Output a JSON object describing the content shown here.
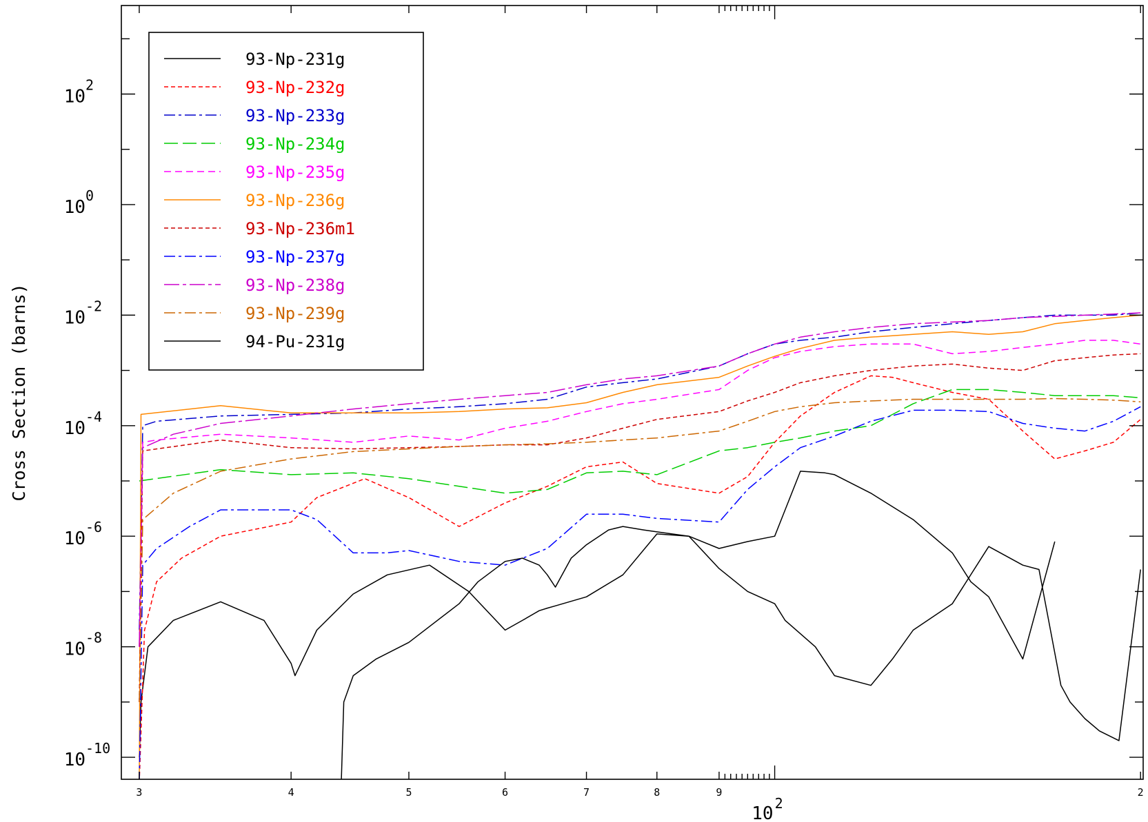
{
  "chart_data": {
    "type": "line",
    "title": "",
    "xlabel": "",
    "ylabel": "Cross Section (barns)",
    "x_scale": "log",
    "y_scale": "log",
    "xlim": [
      29,
      201
    ],
    "ylim": [
      4e-11,
      4000
    ],
    "grid": false,
    "legend_position": "top-left",
    "x_tick_labels": [
      {
        "value": 30,
        "label": "3"
      },
      {
        "value": 40,
        "label": "4"
      },
      {
        "value": 50,
        "label": "5"
      },
      {
        "value": 60,
        "label": "6"
      },
      {
        "value": 70,
        "label": "7"
      },
      {
        "value": 80,
        "label": "8"
      },
      {
        "value": 90,
        "label": "9"
      },
      {
        "value": 200,
        "label": "2"
      }
    ],
    "x_decade_labels": [
      {
        "value": 100,
        "base": "10",
        "exp": "2"
      }
    ],
    "y_decade_labels": [
      {
        "value": 1e-10,
        "base": "10",
        "exp": "-10"
      },
      {
        "value": 1e-08,
        "base": "10",
        "exp": "-8"
      },
      {
        "value": 1e-06,
        "base": "10",
        "exp": "-6"
      },
      {
        "value": 0.0001,
        "base": "10",
        "exp": "-4"
      },
      {
        "value": 0.01,
        "base": "10",
        "exp": "-2"
      },
      {
        "value": 1,
        "base": "10",
        "exp": "0"
      },
      {
        "value": 100,
        "base": "10",
        "exp": "2"
      }
    ],
    "series": [
      {
        "name": "93-Np-231g",
        "color": "#000000",
        "dash": "solid",
        "x": [
          30,
          30.1,
          30.5,
          32,
          35,
          38,
          40,
          40.3,
          42,
          45,
          48,
          52,
          56,
          60,
          62,
          64,
          65,
          66,
          70,
          75,
          80,
          85,
          90,
          95,
          100,
          102,
          108,
          112,
          120,
          125,
          130,
          140,
          150,
          160,
          165,
          172,
          175,
          180,
          185,
          192,
          200
        ],
        "y": [
          1e-10,
          1e-09,
          1e-08,
          3e-08,
          6.5e-08,
          3e-08,
          5e-09,
          3e-09,
          2e-08,
          9e-08,
          2e-07,
          3e-07,
          1e-07,
          2e-08,
          3e-08,
          4.5e-08,
          5e-08,
          5.5e-08,
          8e-08,
          2e-07,
          1.1e-06,
          1e-06,
          2.6e-07,
          1e-07,
          6e-08,
          3e-08,
          1e-08,
          3e-09,
          2e-09,
          6e-09,
          2e-08,
          6e-08,
          6.5e-07,
          3e-07,
          2.5e-07,
          2e-09,
          1e-09,
          5e-10,
          3e-10,
          2e-10,
          2.5e-07
        ]
      },
      {
        "name": "93-Np-232g",
        "color": "#ff0000",
        "dash": "dash",
        "x": [
          30,
          30.3,
          31,
          32.5,
          35,
          40,
          42,
          46,
          50,
          55,
          60,
          65,
          70,
          75,
          80,
          90,
          95,
          100,
          105,
          112,
          120,
          125,
          130,
          140,
          150,
          160,
          170,
          180,
          190,
          200
        ],
        "y": [
          3e-11,
          2e-08,
          1.5e-07,
          4e-07,
          1e-06,
          1.8e-06,
          5e-06,
          1.1e-05,
          5e-06,
          1.5e-06,
          4e-06,
          8e-06,
          1.8e-05,
          2.2e-05,
          9e-06,
          6e-06,
          1.2e-05,
          5e-05,
          0.00015,
          0.0004,
          0.0008,
          0.00075,
          0.0006,
          0.0004,
          0.0003,
          8e-05,
          2.5e-05,
          3.5e-05,
          5e-05,
          0.00013
        ]
      },
      {
        "name": "93-Np-233g",
        "color": "#0000cc",
        "dash": "dashdot",
        "x": [
          30,
          30.2,
          31,
          35,
          40,
          45,
          50,
          55,
          60,
          65,
          70,
          75,
          80,
          90,
          95,
          100,
          105,
          112,
          120,
          130,
          140,
          150,
          160,
          170,
          180,
          190,
          200
        ],
        "y": [
          2e-08,
          0.0001,
          0.00012,
          0.00015,
          0.00016,
          0.00017,
          0.0002,
          0.00022,
          0.00025,
          0.0003,
          0.0005,
          0.0006,
          0.0007,
          0.0012,
          0.002,
          0.003,
          0.0035,
          0.004,
          0.005,
          0.006,
          0.007,
          0.008,
          0.009,
          0.01,
          0.01,
          0.01,
          0.011
        ]
      },
      {
        "name": "93-Np-234g",
        "color": "#00cc00",
        "dash": "longdash",
        "x": [
          30,
          35,
          40,
          45,
          50,
          55,
          60,
          65,
          70,
          75,
          80,
          90,
          95,
          100,
          105,
          112,
          120,
          130,
          140,
          150,
          160,
          170,
          180,
          190,
          200
        ],
        "y": [
          1e-05,
          1.6e-05,
          1.3e-05,
          1.4e-05,
          1.1e-05,
          8e-06,
          6e-06,
          7e-06,
          1.4e-05,
          1.5e-05,
          1.3e-05,
          3.5e-05,
          4e-05,
          5e-05,
          6e-05,
          8e-05,
          0.0001,
          0.00025,
          0.00045,
          0.00045,
          0.0004,
          0.00035,
          0.00035,
          0.00035,
          0.00032
        ]
      },
      {
        "name": "93-Np-235g",
        "color": "#ff00ff",
        "dash": "dash2",
        "x": [
          30,
          30.2,
          31,
          35,
          40,
          45,
          50,
          55,
          60,
          65,
          70,
          75,
          80,
          90,
          95,
          100,
          105,
          112,
          120,
          130,
          140,
          150,
          160,
          170,
          180,
          190,
          200
        ],
        "y": [
          1e-08,
          5e-05,
          5.5e-05,
          7e-05,
          6e-05,
          5e-05,
          6.5e-05,
          5.5e-05,
          9e-05,
          0.00012,
          0.00018,
          0.00025,
          0.0003,
          0.00045,
          0.001,
          0.0017,
          0.0022,
          0.0027,
          0.003,
          0.003,
          0.002,
          0.0022,
          0.0026,
          0.003,
          0.0035,
          0.0035,
          0.003
        ]
      },
      {
        "name": "93-Np-236g",
        "color": "#ff8800",
        "dash": "solid",
        "x": [
          30,
          30.1,
          35,
          40,
          45,
          50,
          55,
          60,
          65,
          70,
          75,
          80,
          90,
          95,
          100,
          105,
          112,
          120,
          130,
          140,
          150,
          160,
          170,
          180,
          190,
          200
        ],
        "y": [
          2e-11,
          0.00016,
          0.00023,
          0.00017,
          0.00017,
          0.00017,
          0.00018,
          0.0002,
          0.00021,
          0.00026,
          0.0004,
          0.00055,
          0.00075,
          0.0012,
          0.0018,
          0.0025,
          0.0035,
          0.004,
          0.0045,
          0.005,
          0.0045,
          0.005,
          0.007,
          0.008,
          0.009,
          0.01
        ]
      },
      {
        "name": "93-Np-236m1",
        "color": "#cc0000",
        "dash": "dash",
        "x": [
          30,
          30.2,
          35,
          40,
          45,
          50,
          55,
          60,
          65,
          70,
          75,
          80,
          90,
          95,
          100,
          105,
          112,
          120,
          130,
          140,
          150,
          160,
          170,
          180,
          190,
          200
        ],
        "y": [
          1e-09,
          3.5e-05,
          5.5e-05,
          4e-05,
          3.8e-05,
          4e-05,
          4.2e-05,
          4.5e-05,
          4.5e-05,
          6e-05,
          9e-05,
          0.00013,
          0.00018,
          0.00028,
          0.0004,
          0.0006,
          0.0008,
          0.001,
          0.0012,
          0.0013,
          0.0011,
          0.001,
          0.0015,
          0.0017,
          0.0019,
          0.002
        ]
      },
      {
        "name": "93-Np-237g",
        "color": "#0000ff",
        "dash": "dashdot",
        "x": [
          30,
          30.2,
          31,
          33,
          35,
          38,
          40,
          42,
          45,
          48,
          50,
          55,
          60,
          65,
          70,
          75,
          80,
          90,
          95,
          100,
          105,
          112,
          120,
          130,
          140,
          150,
          160,
          170,
          180,
          190,
          200
        ],
        "y": [
          3e-11,
          3e-07,
          6e-07,
          1.5e-06,
          3e-06,
          3e-06,
          3e-06,
          2e-06,
          5e-07,
          5e-07,
          5.5e-07,
          3.5e-07,
          3e-07,
          6e-07,
          2.5e-06,
          2.5e-06,
          2.1e-06,
          1.8e-06,
          7e-06,
          1.8e-05,
          4e-05,
          6.5e-05,
          0.00012,
          0.00019,
          0.00019,
          0.00018,
          0.00011,
          9e-05,
          8e-05,
          0.00012,
          0.00022
        ]
      },
      {
        "name": "93-Np-238g",
        "color": "#cc00cc",
        "dash": "longdashdot",
        "x": [
          30,
          30.2,
          32,
          35,
          40,
          45,
          50,
          55,
          60,
          65,
          70,
          75,
          80,
          90,
          95,
          100,
          105,
          112,
          120,
          130,
          140,
          150,
          160,
          170,
          180,
          190,
          200
        ],
        "y": [
          1e-08,
          4e-05,
          7e-05,
          0.00011,
          0.00015,
          0.0002,
          0.00025,
          0.0003,
          0.00035,
          0.0004,
          0.00055,
          0.0007,
          0.0008,
          0.0012,
          0.002,
          0.003,
          0.004,
          0.005,
          0.006,
          0.007,
          0.0075,
          0.008,
          0.009,
          0.0095,
          0.01,
          0.0105,
          0.011
        ]
      },
      {
        "name": "93-Np-239g",
        "color": "#cc6600",
        "dash": "dashdot",
        "x": [
          30,
          30.2,
          32,
          35,
          40,
          45,
          50,
          55,
          60,
          65,
          70,
          75,
          80,
          90,
          95,
          100,
          105,
          112,
          120,
          130,
          140,
          150,
          160,
          170,
          180,
          190,
          200
        ],
        "y": [
          1e-09,
          2e-06,
          6e-06,
          1.5e-05,
          2.5e-05,
          3.4e-05,
          3.8e-05,
          4.2e-05,
          4.5e-05,
          4.7e-05,
          5e-05,
          5.5e-05,
          6e-05,
          8e-05,
          0.00012,
          0.00018,
          0.00022,
          0.00026,
          0.00028,
          0.0003,
          0.0003,
          0.0003,
          0.0003,
          0.00031,
          0.0003,
          0.00029,
          0.00027
        ]
      },
      {
        "name": "94-Pu-231g",
        "color": "#000000",
        "dash": "solid",
        "x": [
          44,
          44.2,
          45,
          47,
          50,
          55,
          57,
          60,
          62,
          64,
          65,
          66,
          68,
          70,
          73,
          75,
          78,
          80,
          85,
          90,
          95,
          100,
          105,
          110,
          112,
          120,
          130,
          140,
          145,
          150,
          160,
          170
        ],
        "y": [
          4e-11,
          1e-09,
          3e-09,
          6e-09,
          1.2e-08,
          6e-08,
          1.5e-07,
          3.5e-07,
          4e-07,
          3e-07,
          2e-07,
          1.2e-07,
          4e-07,
          7e-07,
          1.3e-06,
          1.5e-06,
          1.3e-06,
          1.2e-06,
          1e-06,
          6e-07,
          8e-07,
          1e-06,
          1.5e-05,
          1.4e-05,
          1.3e-05,
          6e-06,
          2e-06,
          5e-07,
          1.5e-07,
          8e-08,
          6e-09,
          8e-07
        ]
      }
    ]
  }
}
